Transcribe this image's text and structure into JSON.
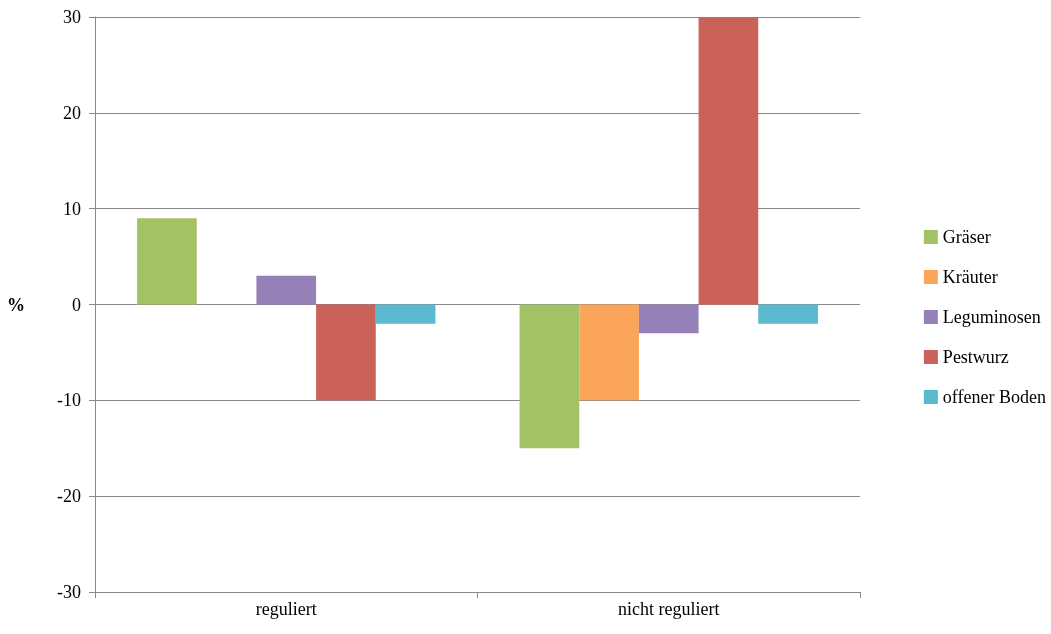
{
  "chart_data": {
    "type": "bar",
    "ylabel": "%",
    "categories": [
      "reguliert",
      "nicht reguliert"
    ],
    "series": [
      {
        "name": "Gräser",
        "color": "#a3c165",
        "values": [
          9,
          -15
        ]
      },
      {
        "name": "Kräuter",
        "color": "#fba55a",
        "values": [
          0,
          -10
        ]
      },
      {
        "name": "Leguminosen",
        "color": "#9580b8",
        "values": [
          3,
          -3
        ]
      },
      {
        "name": "Pestwurz",
        "color": "#cb6259",
        "values": [
          -10,
          30
        ]
      },
      {
        "name": "offener Boden",
        "color": "#5ab8cf",
        "values": [
          -2,
          -2
        ]
      }
    ],
    "ylim": [
      -30,
      30
    ],
    "yticks": [
      -30,
      -20,
      -10,
      0,
      10,
      20,
      30
    ],
    "grid": "y",
    "legend": "right"
  }
}
